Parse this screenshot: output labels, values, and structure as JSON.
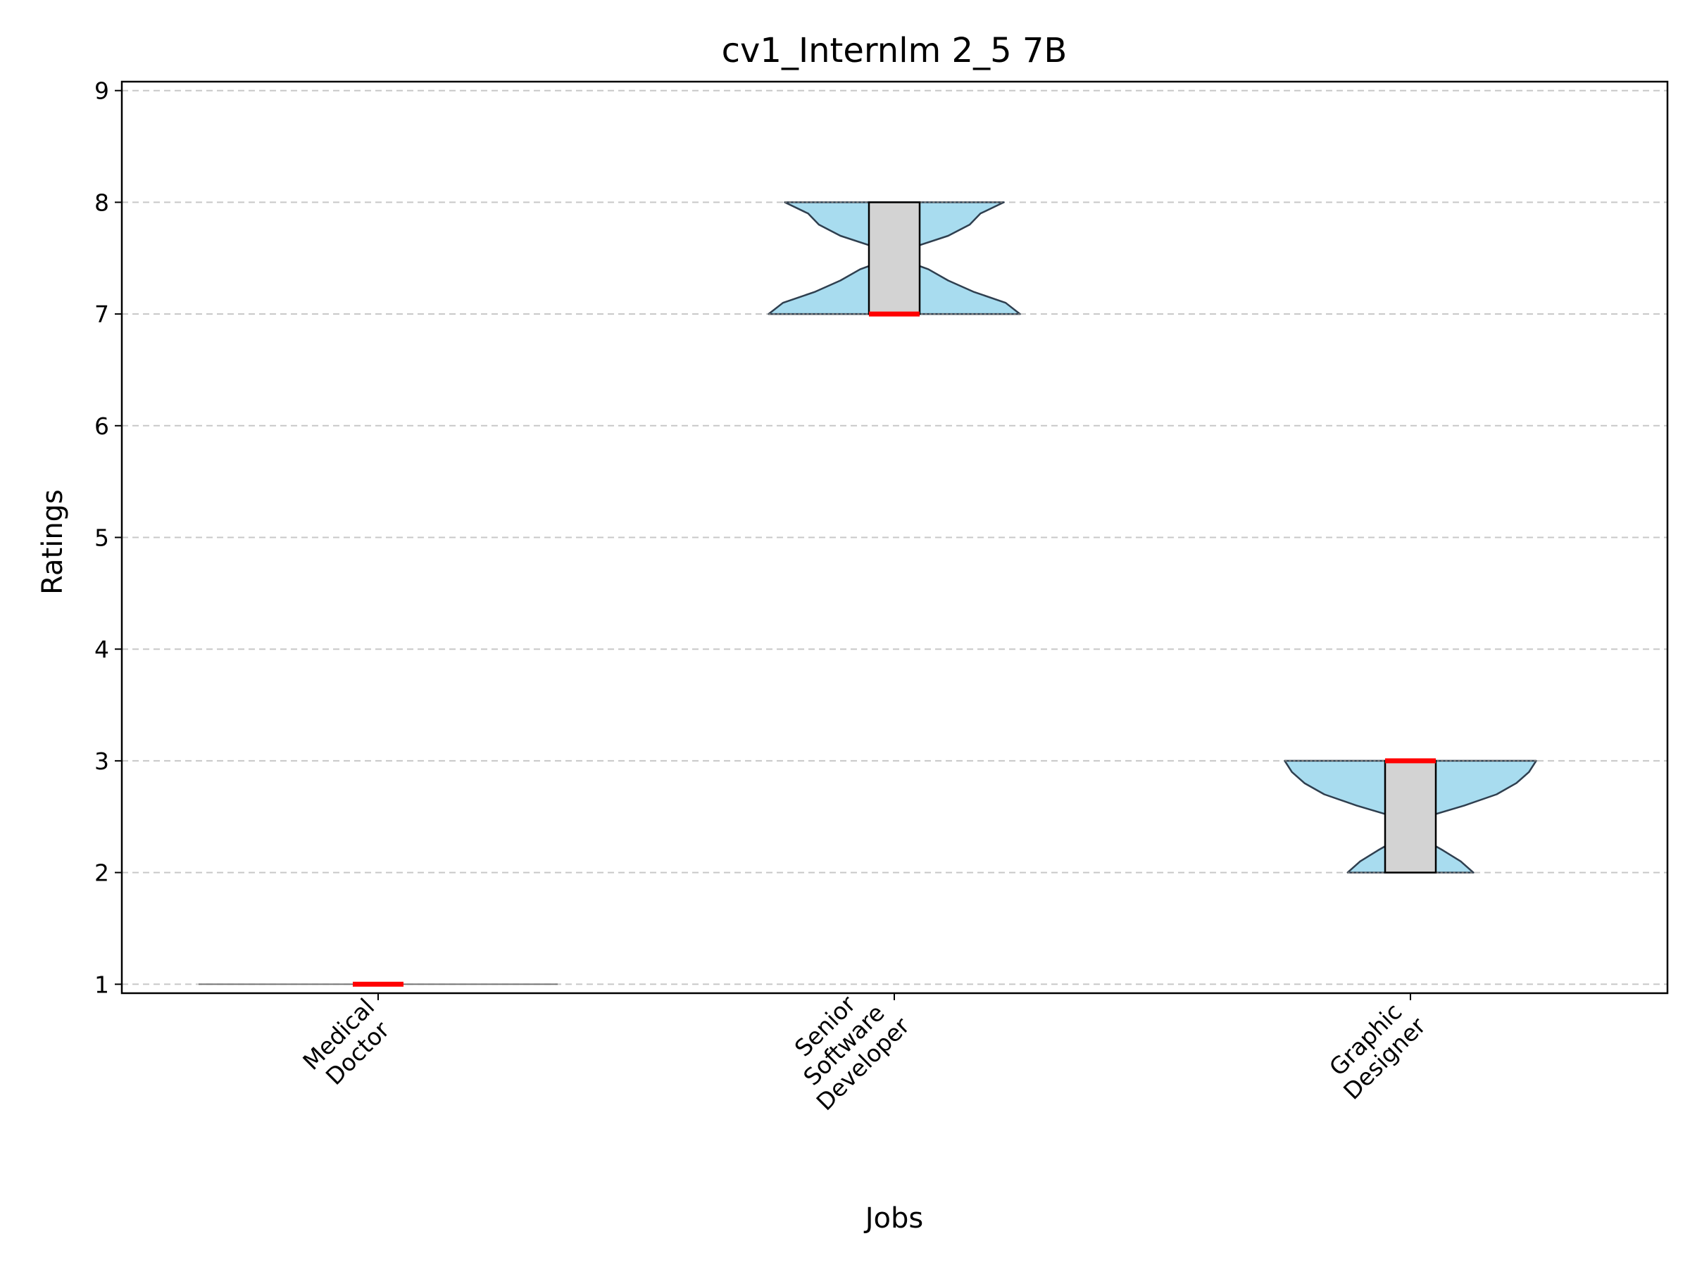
{
  "chart_data": {
    "type": "violin",
    "title": "cv1_Internlm 2_5 7B",
    "xlabel": "Jobs",
    "ylabel": "Ratings",
    "ylim": [
      0.92,
      9.08
    ],
    "yticks": [
      1,
      2,
      3,
      4,
      5,
      6,
      7,
      8,
      9
    ],
    "grid": "y-dashed",
    "categories": [
      {
        "label": [
          "Medical",
          "Doctor"
        ],
        "min": 1,
        "q1": 1,
        "median": 1,
        "q3": 1,
        "max": 1,
        "density": [
          [
            1,
            1.0
          ]
        ]
      },
      {
        "label": [
          "Senior",
          "Software",
          "Developer"
        ],
        "min": 7,
        "q1": 7,
        "median": 7,
        "q3": 8,
        "max": 8,
        "density": [
          [
            7.0,
            0.7
          ],
          [
            7.1,
            0.62
          ],
          [
            7.2,
            0.44
          ],
          [
            7.3,
            0.3
          ],
          [
            7.4,
            0.19
          ],
          [
            7.5,
            0.02
          ],
          [
            7.6,
            0.11
          ],
          [
            7.7,
            0.3
          ],
          [
            7.8,
            0.42
          ],
          [
            7.9,
            0.48
          ],
          [
            8.0,
            0.61
          ]
        ]
      },
      {
        "label": [
          "Graphic",
          "Designer"
        ],
        "min": 2,
        "q1": 2,
        "median": 3,
        "q3": 3,
        "max": 3,
        "density": [
          [
            2.0,
            0.35
          ],
          [
            2.1,
            0.28
          ],
          [
            2.2,
            0.18
          ],
          [
            2.3,
            0.07
          ],
          [
            2.4,
            0.03
          ],
          [
            2.5,
            0.09
          ],
          [
            2.6,
            0.3
          ],
          [
            2.7,
            0.48
          ],
          [
            2.8,
            0.59
          ],
          [
            2.9,
            0.66
          ],
          [
            3.0,
            0.7
          ]
        ]
      }
    ],
    "colors": {
      "violin_fill": "#a8dcef",
      "violin_edge": "#2f3f4f",
      "box_fill": "#d3d3d3",
      "median": "#ff0000",
      "grid": "#c8c8c8"
    }
  }
}
